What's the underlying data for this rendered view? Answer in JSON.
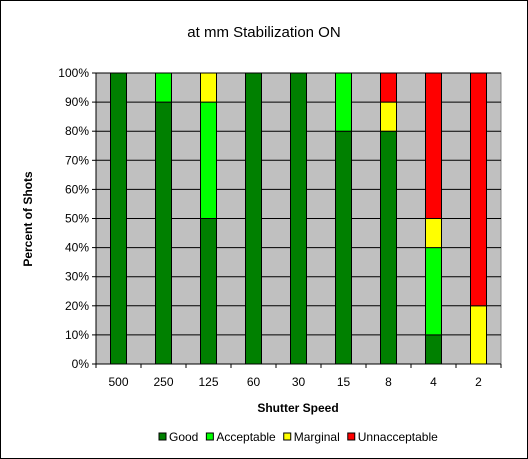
{
  "chart_data": {
    "type": "bar",
    "stacked": true,
    "normalized": true,
    "title": "at mm Stabilization ON",
    "xlabel": "Shutter Speed",
    "ylabel": "Percent of Shots",
    "categories": [
      "500",
      "250",
      "125",
      "60",
      "30",
      "15",
      "8",
      "4",
      "2"
    ],
    "ylim": [
      0,
      100
    ],
    "yticks": [
      "0%",
      "10%",
      "20%",
      "30%",
      "40%",
      "50%",
      "60%",
      "70%",
      "80%",
      "90%",
      "100%"
    ],
    "grid": true,
    "legend_position": "bottom",
    "series": [
      {
        "name": "Good",
        "color": "#008000",
        "values": [
          100,
          90,
          50,
          100,
          100,
          80,
          80,
          10,
          0
        ]
      },
      {
        "name": "Acceptable",
        "color": "#00ff00",
        "values": [
          0,
          10,
          40,
          0,
          0,
          20,
          0,
          30,
          0
        ]
      },
      {
        "name": "Marginal",
        "color": "#ffff00",
        "values": [
          0,
          0,
          10,
          0,
          0,
          0,
          10,
          10,
          20
        ]
      },
      {
        "name": "Unnacceptable",
        "color": "#ff0000",
        "values": [
          0,
          0,
          0,
          0,
          0,
          0,
          10,
          50,
          80
        ]
      }
    ],
    "plot_background": "#c0c0c0"
  }
}
